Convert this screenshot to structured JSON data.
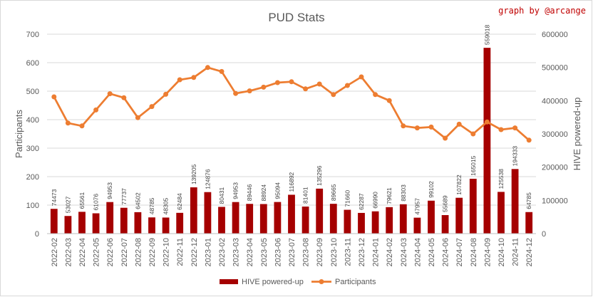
{
  "watermark": "graph by @arcange",
  "chart_data": {
    "type": "bar+line",
    "title": "PUD Stats",
    "ylabel_left": "Participants",
    "ylabel_right": "HIVE powered-up",
    "ylim_left": [
      0,
      700
    ],
    "ylim_right": [
      0,
      600000
    ],
    "yticks_left": [
      0,
      100,
      200,
      300,
      400,
      500,
      600,
      700
    ],
    "yticks_right": [
      0,
      100000,
      200000,
      300000,
      400000,
      500000,
      600000
    ],
    "grid": true,
    "legend_position": "bottom",
    "categories": [
      "2022-02",
      "2022-03",
      "2022-04",
      "2022-05",
      "2022-06",
      "2022-07",
      "2022-08",
      "2022-09",
      "2022-10",
      "2022-11",
      "2022-12",
      "2023-01",
      "2023-02",
      "2023-03",
      "2023-04",
      "2023-05",
      "2023-06",
      "2023-07",
      "2023-08",
      "2023-09",
      "2023-10",
      "2023-11",
      "2023-12",
      "2024-01",
      "2024-02",
      "2024-03",
      "2024-04",
      "2024-05",
      "2024-06",
      "2024-07",
      "2024-08",
      "2024-09",
      "2024-10",
      "2024-11",
      "2024-12"
    ],
    "series": [
      {
        "name": "HIVE powered-up",
        "type": "bar",
        "axis": "right",
        "color": "#a50000",
        "values": [
          74473,
          53027,
          65561,
          61076,
          94953,
          77737,
          64502,
          48785,
          48305,
          62484,
          139205,
          124876,
          80431,
          94953,
          89446,
          88924,
          95094,
          116892,
          81401,
          135296,
          89665,
          71660,
          62287,
          66990,
          79621,
          88303,
          47957,
          99102,
          55689,
          107822,
          165015,
          559018,
          125538,
          194333,
          64785
        ]
      },
      {
        "name": "Participants",
        "type": "line",
        "axis": "left",
        "color": "#ed7d31",
        "values": [
          480,
          388,
          378,
          434,
          491,
          477,
          407,
          446,
          489,
          540,
          548,
          583,
          569,
          492,
          501,
          514,
          530,
          533,
          508,
          525,
          488,
          520,
          550,
          488,
          467,
          378,
          371,
          374,
          335,
          384,
          350,
          392,
          365,
          371,
          328
        ]
      }
    ]
  }
}
